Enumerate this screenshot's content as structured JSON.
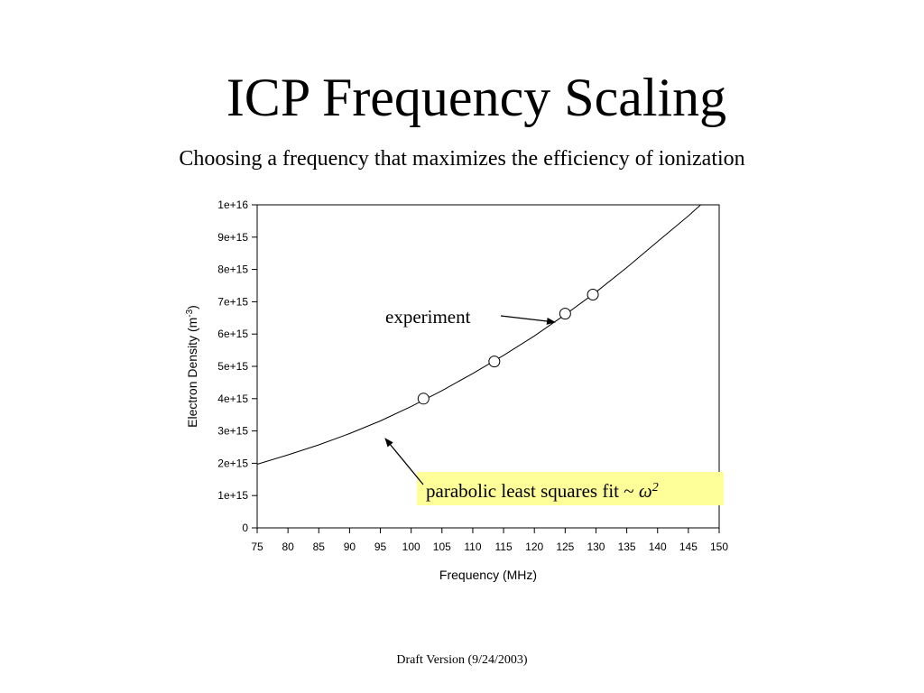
{
  "slide": {
    "title": "ICP Frequency Scaling",
    "subtitle": "Choosing a frequency that maximizes the efficiency of ionization",
    "footer": "Draft Version (9/24/2003)"
  },
  "chart_data": {
    "type": "scatter",
    "title": "",
    "xlabel": "Frequency (MHz)",
    "ylabel": "Electron Density (m",
    "ylabel_sup": "-3",
    "ylabel_close": ")",
    "xlim": [
      75,
      150
    ],
    "ylim": [
      0,
      1e+16
    ],
    "x_ticks": [
      75,
      80,
      85,
      90,
      95,
      100,
      105,
      110,
      115,
      120,
      125,
      130,
      135,
      140,
      145,
      150
    ],
    "x_tick_labels": [
      "75",
      "80",
      "85",
      "90",
      "95",
      "100",
      "105",
      "110",
      "115",
      "120",
      "125",
      "130",
      "135",
      "140",
      "145",
      "150"
    ],
    "y_ticks": [
      0,
      1000000000000000.0,
      2000000000000000.0,
      3000000000000000.0,
      4000000000000000.0,
      5000000000000000.0,
      6000000000000000.0,
      7000000000000000.0,
      8000000000000000.0,
      9000000000000000.0,
      1e+16
    ],
    "y_tick_labels": [
      "0",
      "1e+15",
      "2e+15",
      "3e+15",
      "4e+15",
      "5e+15",
      "6e+15",
      "7e+15",
      "8e+15",
      "9e+15",
      "1e+16"
    ],
    "grid": false,
    "series": [
      {
        "name": "experiment",
        "kind": "points",
        "x": [
          102,
          113.5,
          125,
          129.5
        ],
        "y": [
          4000000000000000.0,
          5150000000000000.0,
          6630000000000000.0,
          7220000000000000.0
        ]
      },
      {
        "name": "parabolic least squares fit",
        "kind": "line",
        "x": [
          75,
          80,
          85,
          90,
          95,
          100,
          105,
          110,
          115,
          120,
          125,
          130,
          135,
          140,
          145,
          147
        ],
        "y": [
          1970000000000000.0,
          2260000000000000.0,
          2570000000000000.0,
          2920000000000000.0,
          3310000000000000.0,
          3760000000000000.0,
          4250000000000000.0,
          4780000000000000.0,
          5340000000000000.0,
          5940000000000000.0,
          6600000000000000.0,
          7300000000000000.0,
          8060000000000000.0,
          8860000000000000.0,
          9660000000000000.0,
          1e+16
        ]
      }
    ],
    "annotations": [
      {
        "text": "experiment"
      },
      {
        "text": "parabolic least squares fit ~ ",
        "symbol": "ω",
        "superscript": "2",
        "background": "#ffff99"
      }
    ]
  }
}
